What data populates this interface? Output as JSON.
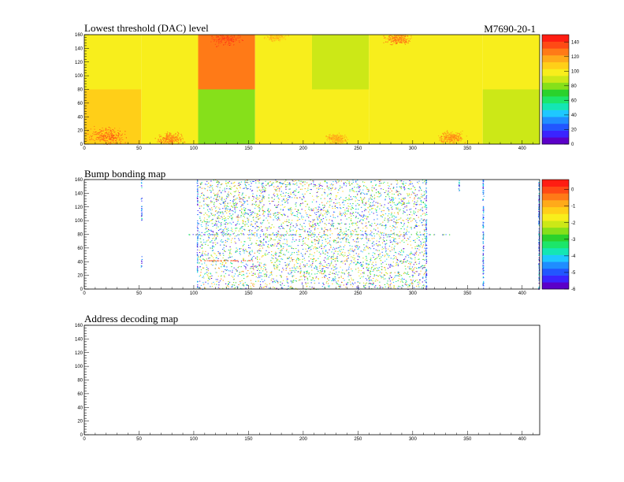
{
  "header": {
    "module_id": "M7690-20-1"
  },
  "chart_data": [
    {
      "type": "heatmap",
      "title": "Lowest threshold (DAC) level",
      "xlabel": "",
      "ylabel": "",
      "xlim": [
        0,
        416
      ],
      "ylim": [
        0,
        160
      ],
      "x_ticks": [
        0,
        50,
        100,
        150,
        200,
        250,
        300,
        350,
        400
      ],
      "y_ticks": [
        0,
        20,
        40,
        60,
        80,
        100,
        120,
        140,
        160
      ],
      "z_range": [
        0,
        150
      ],
      "z_ticks": [
        0,
        20,
        40,
        60,
        80,
        100,
        120,
        140
      ],
      "palette": [
        "#5b00c8",
        "#3a24ff",
        "#2256ff",
        "#1f8dff",
        "#1ec8ff",
        "#14e6b4",
        "#1ce66a",
        "#2ad22c",
        "#86e01a",
        "#cce817",
        "#f8ee1c",
        "#ffcf18",
        "#ffaa1a",
        "#ff7a17",
        "#ff4a15",
        "#ff1d12"
      ],
      "rocs": [
        {
          "x": [
            0,
            52
          ],
          "y": [
            80,
            160
          ],
          "value": 102
        },
        {
          "x": [
            52,
            104
          ],
          "y": [
            80,
            160
          ],
          "value": 98
        },
        {
          "x": [
            104,
            156
          ],
          "y": [
            80,
            160
          ],
          "value": 122
        },
        {
          "x": [
            156,
            208
          ],
          "y": [
            80,
            160
          ],
          "value": 100
        },
        {
          "x": [
            208,
            260
          ],
          "y": [
            80,
            160
          ],
          "value": 88
        },
        {
          "x": [
            260,
            312
          ],
          "y": [
            80,
            160
          ],
          "value": 102
        },
        {
          "x": [
            312,
            364
          ],
          "y": [
            80,
            160
          ],
          "value": 95
        },
        {
          "x": [
            364,
            416
          ],
          "y": [
            80,
            160
          ],
          "value": 100
        },
        {
          "x": [
            0,
            52
          ],
          "y": [
            0,
            80
          ],
          "value": 104
        },
        {
          "x": [
            52,
            104
          ],
          "y": [
            0,
            80
          ],
          "value": 97
        },
        {
          "x": [
            104,
            156
          ],
          "y": [
            0,
            80
          ],
          "value": 84
        },
        {
          "x": [
            156,
            208
          ],
          "y": [
            0,
            80
          ],
          "value": 99
        },
        {
          "x": [
            208,
            260
          ],
          "y": [
            0,
            80
          ],
          "value": 96
        },
        {
          "x": [
            260,
            312
          ],
          "y": [
            0,
            80
          ],
          "value": 98
        },
        {
          "x": [
            312,
            364
          ],
          "y": [
            0,
            80
          ],
          "value": 103
        },
        {
          "x": [
            364,
            416
          ],
          "y": [
            0,
            80
          ],
          "value": 91
        }
      ],
      "hot_regions": [
        {
          "x": 20,
          "y": 12,
          "spread": 14,
          "value": 130
        },
        {
          "x": 78,
          "y": 8,
          "spread": 10,
          "value": 125
        },
        {
          "x": 130,
          "y": 155,
          "spread": 12,
          "value": 135
        },
        {
          "x": 285,
          "y": 155,
          "spread": 10,
          "value": 125
        },
        {
          "x": 335,
          "y": 10,
          "spread": 10,
          "value": 122
        },
        {
          "x": 230,
          "y": 8,
          "spread": 8,
          "value": 115
        },
        {
          "x": 175,
          "y": 158,
          "spread": 8,
          "value": 112
        }
      ]
    },
    {
      "type": "heatmap",
      "title": "Bump bonding map",
      "xlabel": "",
      "ylabel": "",
      "xlim": [
        0,
        416
      ],
      "ylim": [
        0,
        160
      ],
      "x_ticks": [
        0,
        50,
        100,
        150,
        200,
        250,
        300,
        350,
        400
      ],
      "y_ticks": [
        0,
        20,
        40,
        60,
        80,
        100,
        120,
        140,
        160
      ],
      "z_range": [
        -6,
        0.6
      ],
      "z_ticks": [
        -6,
        -5,
        -4,
        -3,
        -2,
        -1,
        0
      ],
      "palette": [
        "#5b00c8",
        "#3a24ff",
        "#2256ff",
        "#1f8dff",
        "#1ec8ff",
        "#14e6b4",
        "#1ce66a",
        "#2ad22c",
        "#86e01a",
        "#cce817",
        "#f8ee1c",
        "#ffcf18",
        "#ffaa1a",
        "#ff7a17",
        "#ff4a15",
        "#ff1d12"
      ],
      "dense_regions": [
        {
          "x": [
            104,
            156
          ],
          "y": [
            0,
            160
          ],
          "density": 0.45
        },
        {
          "x": [
            156,
            312
          ],
          "y": [
            0,
            160
          ],
          "density": 0.55
        },
        {
          "x": [
            110,
            150
          ],
          "y": [
            80,
            160
          ],
          "density": 0.25
        }
      ],
      "columns": [
        {
          "x": 52,
          "y": [
            100,
            160
          ],
          "density": 0.5
        },
        {
          "x": 52,
          "y": [
            30,
            50
          ],
          "density": 0.5
        },
        {
          "x": 364,
          "y": [
            0,
            160
          ],
          "density": 0.9
        },
        {
          "x": 342,
          "y": [
            140,
            160
          ],
          "density": 0.6
        },
        {
          "x": 312,
          "y": [
            0,
            160
          ],
          "density": 0.7
        },
        {
          "x": 103,
          "y": [
            0,
            160
          ],
          "density": 0.6
        },
        {
          "x": 415,
          "y": [
            0,
            160
          ],
          "density": 0.9
        }
      ],
      "rows": [
        {
          "y": 80,
          "x": [
            95,
            335
          ],
          "density": 0.6
        },
        {
          "y": 42,
          "x": [
            105,
            155
          ],
          "density": 0.9,
          "value": 0
        }
      ]
    },
    {
      "type": "heatmap",
      "title": "Address decoding map",
      "xlabel": "",
      "ylabel": "",
      "xlim": [
        0,
        416
      ],
      "ylim": [
        0,
        160
      ],
      "x_ticks": [
        0,
        50,
        100,
        150,
        200,
        250,
        300,
        350,
        400
      ],
      "y_ticks": [
        0,
        20,
        40,
        60,
        80,
        100,
        120,
        140,
        160
      ]
    }
  ]
}
